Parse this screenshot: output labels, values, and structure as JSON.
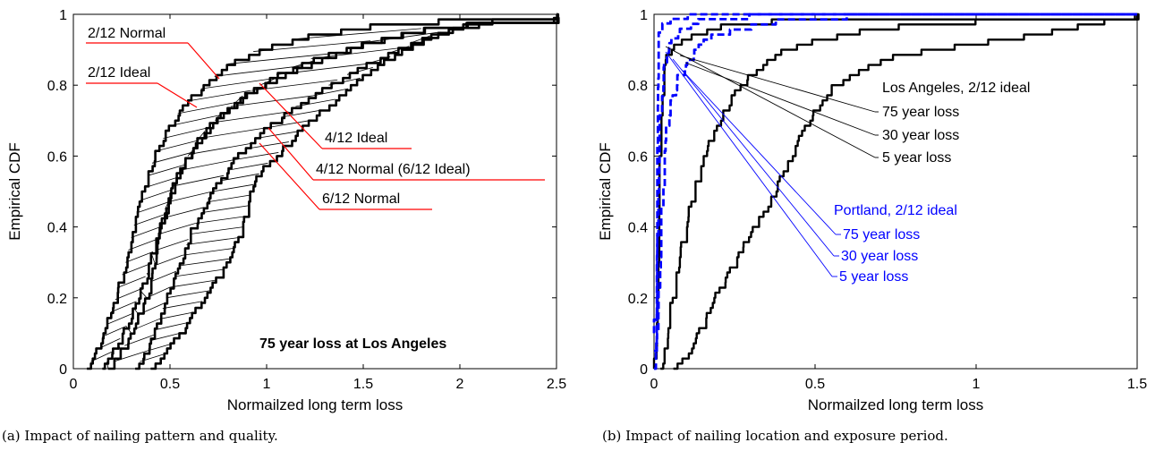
{
  "colors": {
    "black": "#000000",
    "red": "#ff0000",
    "blue": "#0000ff"
  },
  "captions": [
    "(a) Impact of nailing pattern and quality.",
    "(b) Impact of nailing location and exposure period."
  ],
  "chart_data": [
    {
      "type": "line",
      "xlabel": "Normailzed long term  loss",
      "ylabel": "Empirical CDF",
      "xlim": [
        0,
        2.5
      ],
      "ylim": [
        0,
        1
      ],
      "xticks": [
        "0",
        "0.5",
        "1",
        "1.5",
        "2",
        "2.5"
      ],
      "yticks": [
        "0",
        "0.2",
        "0.4",
        "0.6",
        "0.8",
        "1"
      ],
      "annotation": "75 year loss at Los Angeles",
      "series": [
        {
          "name": "2/12 Ideal",
          "color": "#000000",
          "points": [
            [
              0.07,
              0
            ],
            [
              0.12,
              0.05
            ],
            [
              0.17,
              0.12
            ],
            [
              0.22,
              0.2
            ],
            [
              0.27,
              0.3
            ],
            [
              0.32,
              0.42
            ],
            [
              0.37,
              0.52
            ],
            [
              0.42,
              0.6
            ],
            [
              0.5,
              0.69
            ],
            [
              0.58,
              0.75
            ],
            [
              0.68,
              0.8
            ],
            [
              0.8,
              0.86
            ],
            [
              0.95,
              0.9
            ],
            [
              1.2,
              0.94
            ],
            [
              1.5,
              0.97
            ],
            [
              2.0,
              0.99
            ],
            [
              2.5,
              1.0
            ]
          ]
        },
        {
          "name": "2/12 Normal",
          "color": "#000000",
          "points": [
            [
              0.15,
              0
            ],
            [
              0.22,
              0.06
            ],
            [
              0.3,
              0.15
            ],
            [
              0.38,
              0.27
            ],
            [
              0.45,
              0.4
            ],
            [
              0.52,
              0.52
            ],
            [
              0.6,
              0.6
            ],
            [
              0.68,
              0.67
            ],
            [
              0.78,
              0.73
            ],
            [
              0.9,
              0.78
            ],
            [
              1.05,
              0.82
            ],
            [
              1.25,
              0.87
            ],
            [
              1.5,
              0.92
            ],
            [
              1.8,
              0.96
            ],
            [
              2.1,
              0.98
            ],
            [
              2.5,
              0.99
            ]
          ]
        },
        {
          "name": "4/12 Ideal",
          "color": "#000000",
          "points": [
            [
              0.18,
              0
            ],
            [
              0.25,
              0.05
            ],
            [
              0.32,
              0.12
            ],
            [
              0.38,
              0.2
            ],
            [
              0.42,
              0.3
            ],
            [
              0.45,
              0.4
            ],
            [
              0.5,
              0.5
            ],
            [
              0.57,
              0.58
            ],
            [
              0.65,
              0.65
            ],
            [
              0.75,
              0.71
            ],
            [
              0.88,
              0.77
            ],
            [
              1.05,
              0.83
            ],
            [
              1.25,
              0.88
            ],
            [
              1.5,
              0.92
            ],
            [
              1.8,
              0.96
            ],
            [
              2.1,
              0.98
            ],
            [
              2.5,
              0.99
            ]
          ]
        },
        {
          "name": "4/12 Normal (6/12 Ideal)",
          "color": "#000000",
          "points": [
            [
              0.32,
              0
            ],
            [
              0.38,
              0.05
            ],
            [
              0.42,
              0.1
            ],
            [
              0.48,
              0.2
            ],
            [
              0.55,
              0.3
            ],
            [
              0.62,
              0.4
            ],
            [
              0.72,
              0.5
            ],
            [
              0.85,
              0.6
            ],
            [
              1.0,
              0.68
            ],
            [
              1.15,
              0.74
            ],
            [
              1.35,
              0.81
            ],
            [
              1.55,
              0.87
            ],
            [
              1.75,
              0.92
            ],
            [
              1.95,
              0.96
            ],
            [
              2.15,
              0.98
            ],
            [
              2.5,
              0.99
            ]
          ]
        },
        {
          "name": "6/12 Normal",
          "color": "#000000",
          "points": [
            [
              0.4,
              0
            ],
            [
              0.48,
              0.05
            ],
            [
              0.58,
              0.12
            ],
            [
              0.68,
              0.2
            ],
            [
              0.8,
              0.3
            ],
            [
              0.88,
              0.4
            ],
            [
              0.92,
              0.5
            ],
            [
              0.97,
              0.56
            ],
            [
              1.08,
              0.62
            ],
            [
              1.22,
              0.7
            ],
            [
              1.4,
              0.78
            ],
            [
              1.55,
              0.85
            ],
            [
              1.7,
              0.9
            ],
            [
              1.85,
              0.94
            ],
            [
              2.0,
              0.97
            ],
            [
              2.2,
              0.99
            ],
            [
              2.5,
              1.0
            ]
          ]
        }
      ],
      "labels": [
        "2/12 Normal",
        "2/12 Ideal",
        "4/12 Ideal",
        "4/12 Normal (6/12 Ideal)",
        "6/12 Normal"
      ]
    },
    {
      "type": "line",
      "xlabel": "Normailzed long term  loss",
      "ylabel": "Empirical CDF",
      "xlim": [
        0,
        1.5
      ],
      "ylim": [
        0,
        1
      ],
      "xticks": [
        "0",
        "0.5",
        "1",
        "1.5"
      ],
      "yticks": [
        "0",
        "0.2",
        "0.4",
        "0.6",
        "0.8",
        "1"
      ],
      "series": [
        {
          "name": "Los Angeles 5 year loss",
          "color": "#000000",
          "dashed": false,
          "points": [
            [
              0.0,
              0
            ],
            [
              0.005,
              0.2
            ],
            [
              0.01,
              0.45
            ],
            [
              0.015,
              0.62
            ],
            [
              0.02,
              0.75
            ],
            [
              0.03,
              0.85
            ],
            [
              0.05,
              0.9
            ],
            [
              0.1,
              0.94
            ],
            [
              0.2,
              0.97
            ],
            [
              0.4,
              0.99
            ],
            [
              1.5,
              1.0
            ]
          ]
        },
        {
          "name": "Los Angeles 30 year loss",
          "color": "#000000",
          "dashed": false,
          "points": [
            [
              0.02,
              0
            ],
            [
              0.04,
              0.1
            ],
            [
              0.07,
              0.25
            ],
            [
              0.1,
              0.4
            ],
            [
              0.13,
              0.52
            ],
            [
              0.17,
              0.63
            ],
            [
              0.21,
              0.72
            ],
            [
              0.26,
              0.79
            ],
            [
              0.32,
              0.85
            ],
            [
              0.4,
              0.9
            ],
            [
              0.5,
              0.93
            ],
            [
              0.65,
              0.96
            ],
            [
              0.85,
              0.98
            ],
            [
              1.1,
              0.99
            ],
            [
              1.5,
              1.0
            ]
          ]
        },
        {
          "name": "Los Angeles 75 year loss",
          "color": "#000000",
          "dashed": false,
          "points": [
            [
              0.06,
              0
            ],
            [
              0.09,
              0.02
            ],
            [
              0.12,
              0.06
            ],
            [
              0.15,
              0.12
            ],
            [
              0.2,
              0.22
            ],
            [
              0.25,
              0.3
            ],
            [
              0.3,
              0.38
            ],
            [
              0.35,
              0.46
            ],
            [
              0.4,
              0.55
            ],
            [
              0.45,
              0.65
            ],
            [
              0.5,
              0.73
            ],
            [
              0.56,
              0.8
            ],
            [
              0.64,
              0.85
            ],
            [
              0.75,
              0.89
            ],
            [
              0.9,
              0.91
            ],
            [
              1.05,
              0.93
            ],
            [
              1.2,
              0.95
            ],
            [
              1.3,
              0.97
            ],
            [
              1.42,
              0.99
            ],
            [
              1.5,
              1.0
            ]
          ]
        },
        {
          "name": "Portland 5 year loss",
          "color": "#0000ff",
          "dashed": true,
          "points": [
            [
              0.0,
              0.1
            ],
            [
              0.003,
              0.5
            ],
            [
              0.005,
              0.75
            ],
            [
              0.008,
              0.88
            ],
            [
              0.01,
              0.93
            ],
            [
              0.02,
              0.97
            ],
            [
              0.05,
              0.99
            ],
            [
              0.1,
              1.0
            ],
            [
              1.5,
              1.0
            ]
          ]
        },
        {
          "name": "Portland 30 year loss",
          "color": "#0000ff",
          "dashed": true,
          "points": [
            [
              0.0,
              0.05
            ],
            [
              0.005,
              0.35
            ],
            [
              0.01,
              0.6
            ],
            [
              0.02,
              0.78
            ],
            [
              0.03,
              0.86
            ],
            [
              0.05,
              0.92
            ],
            [
              0.08,
              0.96
            ],
            [
              0.15,
              0.99
            ],
            [
              0.3,
              1.0
            ],
            [
              1.5,
              1.0
            ]
          ]
        },
        {
          "name": "Portland 75 year loss",
          "color": "#0000ff",
          "dashed": true,
          "points": [
            [
              0.0,
              0
            ],
            [
              0.01,
              0.2
            ],
            [
              0.02,
              0.45
            ],
            [
              0.03,
              0.62
            ],
            [
              0.05,
              0.75
            ],
            [
              0.07,
              0.82
            ],
            [
              0.1,
              0.86
            ],
            [
              0.13,
              0.9
            ],
            [
              0.16,
              0.93
            ],
            [
              0.2,
              0.95
            ],
            [
              0.3,
              0.97
            ],
            [
              0.4,
              0.99
            ],
            [
              0.6,
              1.0
            ],
            [
              1.5,
              1.0
            ]
          ]
        }
      ],
      "groups": [
        {
          "title": "Los Angeles, 2/12 ideal",
          "color": "#000000",
          "items": [
            "75 year loss",
            "30 year loss",
            "5 year loss"
          ]
        },
        {
          "title": "Portland, 2/12 ideal",
          "color": "#0000ff",
          "items": [
            "75 year loss",
            "30 year loss",
            "5 year loss"
          ]
        }
      ]
    }
  ]
}
